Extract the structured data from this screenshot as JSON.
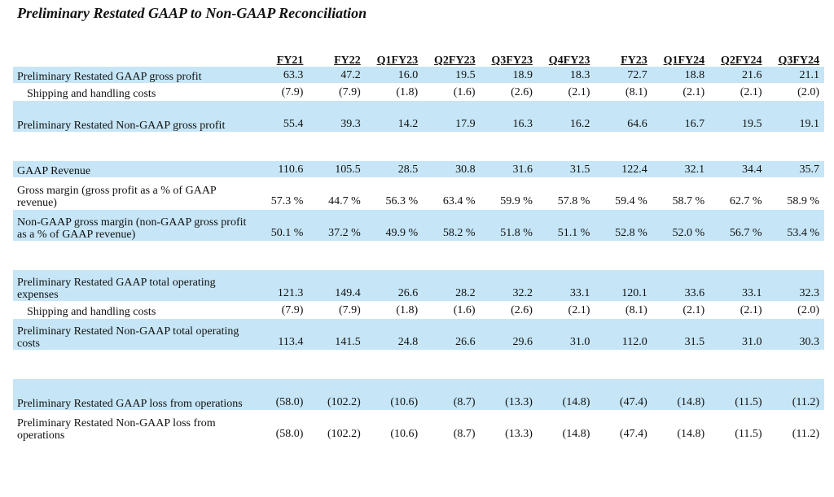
{
  "title": "Preliminary Restated GAAP to Non-GAAP Reconciliation",
  "columns": [
    "FY21",
    "FY22",
    "Q1FY23",
    "Q2FY23",
    "Q3FY23",
    "Q4FY23",
    "FY23",
    "Q1FY24",
    "Q2FY24",
    "Q3FY24"
  ],
  "sections": [
    {
      "rows": [
        {
          "label": "Preliminary Restated GAAP gross profit",
          "shaded": true,
          "indent": false,
          "tall": false,
          "values": [
            "63.3",
            "47.2",
            "16.0",
            "19.5",
            "18.9",
            "18.3",
            "72.7",
            "18.8",
            "21.6",
            "21.1"
          ]
        },
        {
          "label": "Shipping and handling costs",
          "shaded": false,
          "indent": true,
          "tall": false,
          "values": [
            "(7.9)",
            "(7.9)",
            "(1.8)",
            "(1.6)",
            "(2.6)",
            "(2.1)",
            "(8.1)",
            "(2.1)",
            "(2.1)",
            "(2.0)"
          ]
        },
        {
          "label": "Preliminary Restated Non-GAAP gross profit",
          "shaded": true,
          "indent": false,
          "tall": true,
          "values": [
            "55.4",
            "39.3",
            "14.2",
            "17.9",
            "16.3",
            "16.2",
            "64.6",
            "16.7",
            "19.5",
            "19.1"
          ]
        }
      ]
    },
    {
      "rows": [
        {
          "label": "GAAP Revenue",
          "shaded": true,
          "indent": false,
          "tall": false,
          "values": [
            "110.6",
            "105.5",
            "28.5",
            "30.8",
            "31.6",
            "31.5",
            "122.4",
            "32.1",
            "34.4",
            "35.7"
          ]
        },
        {
          "label": "Gross margin (gross profit as a % of GAAP revenue)",
          "shaded": false,
          "indent": false,
          "tall": true,
          "values": [
            "57.3 %",
            "44.7 %",
            "56.3 %",
            "63.4 %",
            "59.9 %",
            "57.8 %",
            "59.4 %",
            "58.7 %",
            "62.7 %",
            "58.9 %"
          ]
        },
        {
          "label": "Non-GAAP gross margin (non-GAAP gross profit as a % of GAAP revenue)",
          "shaded": true,
          "indent": false,
          "tall": true,
          "values": [
            "50.1 %",
            "37.2 %",
            "49.9 %",
            "58.2 %",
            "51.8 %",
            "51.1 %",
            "52.8 %",
            "52.0 %",
            "56.7 %",
            "53.4 %"
          ]
        }
      ]
    },
    {
      "rows": [
        {
          "label": "Preliminary Restated GAAP total operating expenses",
          "shaded": true,
          "indent": false,
          "tall": true,
          "values": [
            "121.3",
            "149.4",
            "26.6",
            "28.2",
            "32.2",
            "33.1",
            "120.1",
            "33.6",
            "33.1",
            "32.3"
          ]
        },
        {
          "label": "Shipping and handling costs",
          "shaded": false,
          "indent": true,
          "tall": false,
          "values": [
            "(7.9)",
            "(7.9)",
            "(1.8)",
            "(1.6)",
            "(2.6)",
            "(2.1)",
            "(8.1)",
            "(2.1)",
            "(2.1)",
            "(2.0)"
          ]
        },
        {
          "label": "Preliminary Restated Non-GAAP total operating costs",
          "shaded": true,
          "indent": false,
          "tall": true,
          "values": [
            "113.4",
            "141.5",
            "24.8",
            "26.6",
            "29.6",
            "31.0",
            "112.0",
            "31.5",
            "31.0",
            "30.3"
          ]
        }
      ]
    },
    {
      "rows": [
        {
          "label": "Preliminary Restated GAAP loss from operations",
          "shaded": true,
          "indent": false,
          "tall": true,
          "values": [
            "(58.0)",
            "(102.2)",
            "(10.6)",
            "(8.7)",
            "(13.3)",
            "(14.8)",
            "(47.4)",
            "(14.8)",
            "(11.5)",
            "(11.2)"
          ]
        },
        {
          "label": "Preliminary Restated Non-GAAP loss from operations",
          "shaded": false,
          "indent": false,
          "tall": true,
          "values": [
            "(58.0)",
            "(102.2)",
            "(10.6)",
            "(8.7)",
            "(13.3)",
            "(14.8)",
            "(47.4)",
            "(14.8)",
            "(11.5)",
            "(11.2)"
          ]
        }
      ]
    }
  ]
}
